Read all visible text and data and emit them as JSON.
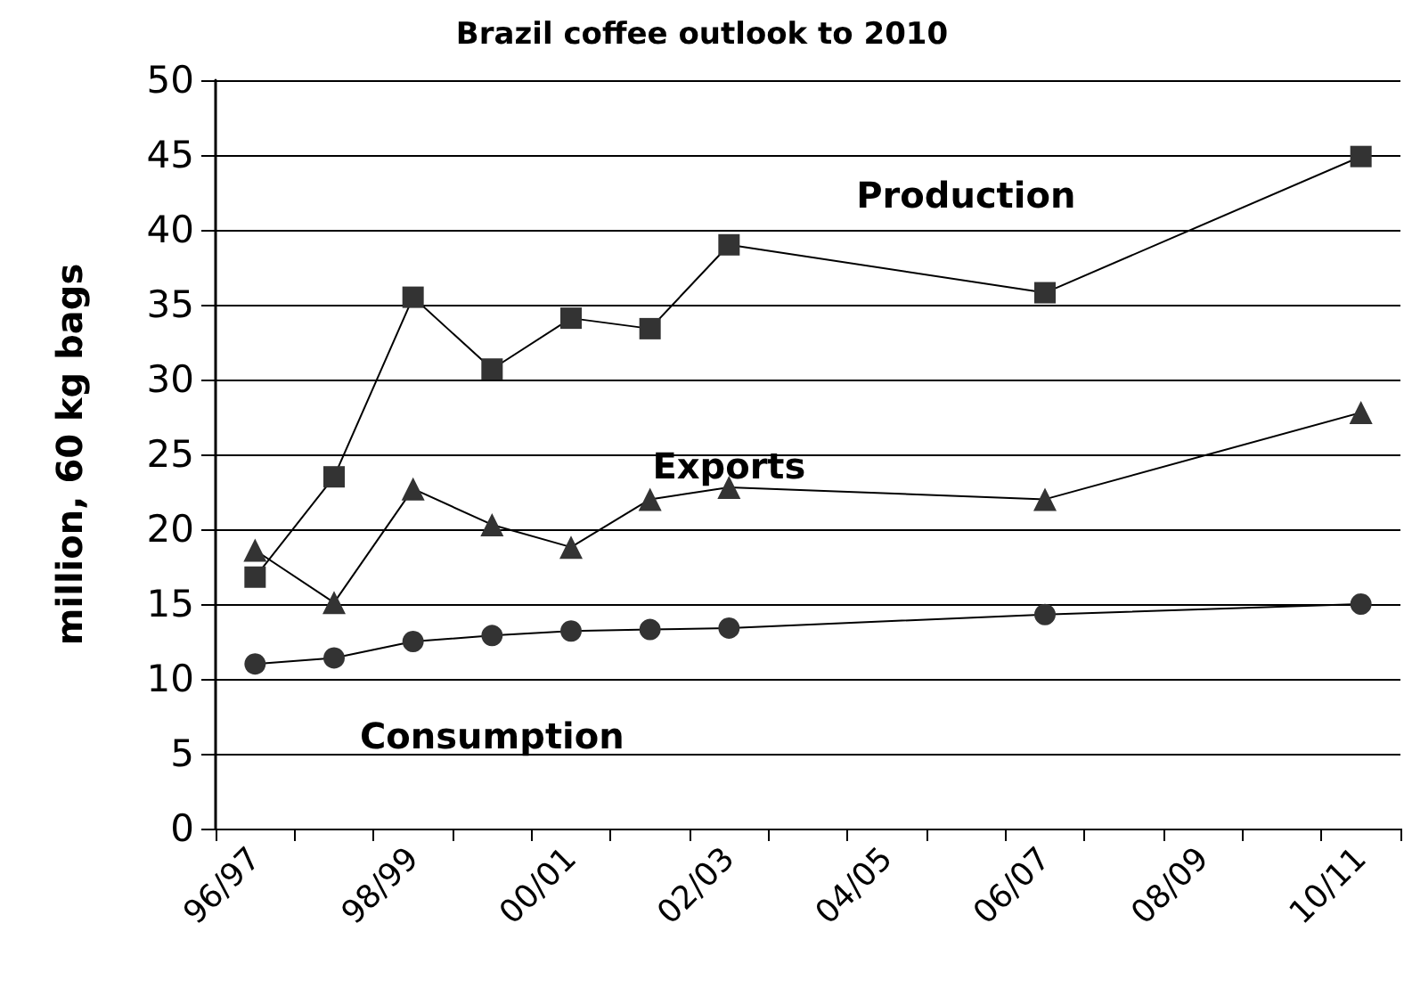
{
  "chart_data": {
    "type": "line",
    "title": "Brazil coffee outlook to 2010",
    "ylabel": "million, 60 kg bags",
    "categories": [
      "96/97",
      null,
      "98/99",
      null,
      "00/01",
      null,
      "02/03",
      null,
      "04/05",
      null,
      "06/07",
      null,
      "08/09",
      null,
      "10/11"
    ],
    "series": [
      {
        "name": "Production",
        "color": "#333333",
        "marker": "square",
        "values": [
          16.8,
          23.5,
          35.5,
          30.7,
          34.1,
          33.4,
          39.0,
          null,
          null,
          null,
          35.8,
          null,
          null,
          null,
          44.9
        ]
      },
      {
        "name": "Exports",
        "color": "#333333",
        "marker": "triangle",
        "values": [
          18.6,
          15.1,
          22.7,
          20.3,
          18.8,
          22.0,
          22.8,
          null,
          null,
          null,
          22.0,
          null,
          null,
          null,
          27.8
        ]
      },
      {
        "name": "Consumption",
        "color": "#333333",
        "marker": "circle",
        "values": [
          11.0,
          11.4,
          12.5,
          12.9,
          13.2,
          13.3,
          13.4,
          null,
          null,
          null,
          14.3,
          null,
          null,
          null,
          15.0
        ]
      }
    ],
    "ylim": [
      0,
      50
    ],
    "yticks": [
      0,
      5,
      10,
      15,
      20,
      25,
      30,
      35,
      40,
      45,
      50
    ],
    "grid": "y",
    "legend": false,
    "line_style": "solid"
  }
}
